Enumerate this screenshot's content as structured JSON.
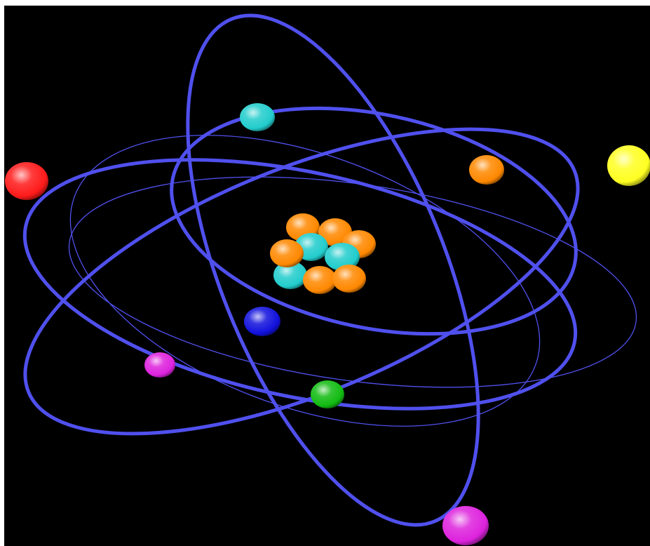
{
  "scene": {
    "background": "#000000",
    "frame": "#ffffff",
    "orbit_color": "#5050ee"
  },
  "nucleus": {
    "particles": [
      {
        "color": "#ff8800",
        "name": "nucleon-orange"
      },
      {
        "color": "#ff8800",
        "name": "nucleon-orange"
      },
      {
        "color": "#ff8800",
        "name": "nucleon-orange"
      },
      {
        "color": "#22cccc",
        "name": "nucleon-cyan"
      },
      {
        "color": "#22cccc",
        "name": "nucleon-cyan"
      },
      {
        "color": "#22cccc",
        "name": "nucleon-cyan"
      },
      {
        "color": "#ff8800",
        "name": "nucleon-orange"
      },
      {
        "color": "#ff8800",
        "name": "nucleon-orange"
      },
      {
        "color": "#ff8800",
        "name": "nucleon-orange"
      }
    ]
  },
  "electrons": [
    {
      "name": "electron-red",
      "color": "#ff1a1a"
    },
    {
      "name": "electron-cyan",
      "color": "#22cccc"
    },
    {
      "name": "electron-orange",
      "color": "#ff8800"
    },
    {
      "name": "electron-yellow",
      "color": "#ffff22"
    },
    {
      "name": "electron-blue",
      "color": "#1111dd"
    },
    {
      "name": "electron-magenta-small",
      "color": "#dd22dd"
    },
    {
      "name": "electron-green",
      "color": "#11bb11"
    },
    {
      "name": "electron-magenta-large",
      "color": "#dd22dd"
    }
  ]
}
